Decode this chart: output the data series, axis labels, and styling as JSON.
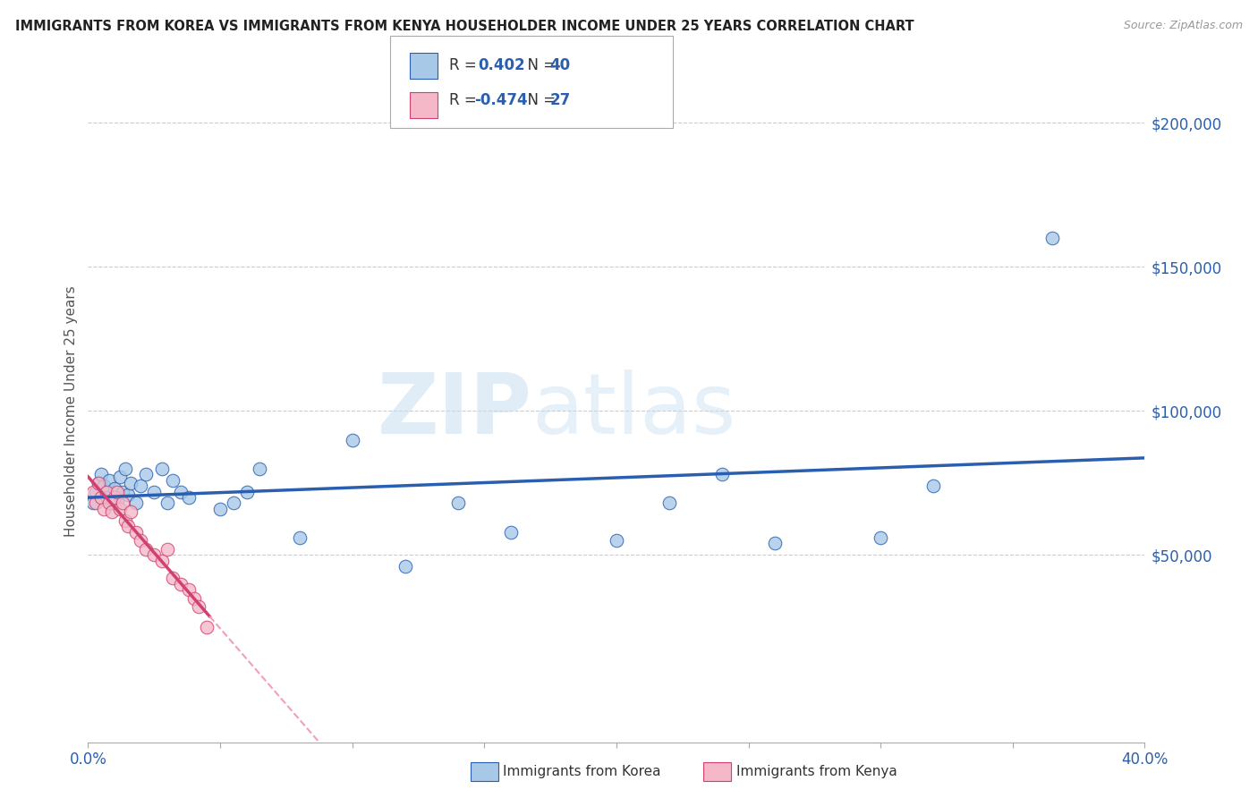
{
  "title": "IMMIGRANTS FROM KOREA VS IMMIGRANTS FROM KENYA HOUSEHOLDER INCOME UNDER 25 YEARS CORRELATION CHART",
  "source": "Source: ZipAtlas.com",
  "ylabel": "Householder Income Under 25 years",
  "xlim": [
    0.0,
    0.4
  ],
  "ylim": [
    -15000,
    215000
  ],
  "xticks": [
    0.0,
    0.05,
    0.1,
    0.15,
    0.2,
    0.25,
    0.3,
    0.35,
    0.4
  ],
  "yticks_right": [
    50000,
    100000,
    150000,
    200000
  ],
  "ytick_labels_right": [
    "$50,000",
    "$100,000",
    "$150,000",
    "$200,000"
  ],
  "korea_R": 0.402,
  "korea_N": 40,
  "kenya_R": -0.474,
  "kenya_N": 27,
  "korea_color": "#a8c8e8",
  "kenya_color": "#f4b8c8",
  "korea_line_color": "#2a5faf",
  "kenya_line_color_solid": "#d04070",
  "kenya_line_color_dashed": "#f0a0b8",
  "watermark_zip": "ZIP",
  "watermark_atlas": "atlas",
  "legend_korea": "Immigrants from Korea",
  "legend_kenya": "Immigrants from Kenya",
  "korea_x": [
    0.002,
    0.003,
    0.004,
    0.005,
    0.006,
    0.007,
    0.008,
    0.009,
    0.01,
    0.011,
    0.012,
    0.013,
    0.014,
    0.015,
    0.016,
    0.018,
    0.02,
    0.022,
    0.025,
    0.028,
    0.03,
    0.032,
    0.035,
    0.038,
    0.05,
    0.055,
    0.06,
    0.065,
    0.08,
    0.1,
    0.12,
    0.14,
    0.16,
    0.2,
    0.22,
    0.24,
    0.26,
    0.3,
    0.32,
    0.365
  ],
  "korea_y": [
    68000,
    72000,
    75000,
    78000,
    74000,
    70000,
    76000,
    68000,
    73000,
    69000,
    77000,
    72000,
    80000,
    71000,
    75000,
    68000,
    74000,
    78000,
    72000,
    80000,
    68000,
    76000,
    72000,
    70000,
    66000,
    68000,
    72000,
    80000,
    56000,
    90000,
    46000,
    68000,
    58000,
    55000,
    68000,
    78000,
    54000,
    56000,
    74000,
    160000
  ],
  "kenya_x": [
    0.002,
    0.003,
    0.004,
    0.005,
    0.006,
    0.007,
    0.008,
    0.009,
    0.01,
    0.011,
    0.012,
    0.013,
    0.014,
    0.015,
    0.016,
    0.018,
    0.02,
    0.022,
    0.025,
    0.028,
    0.03,
    0.032,
    0.035,
    0.038,
    0.04,
    0.042,
    0.045
  ],
  "kenya_y": [
    72000,
    68000,
    75000,
    70000,
    66000,
    72000,
    68000,
    65000,
    70000,
    72000,
    66000,
    68000,
    62000,
    60000,
    65000,
    58000,
    55000,
    52000,
    50000,
    48000,
    52000,
    42000,
    40000,
    38000,
    35000,
    32000,
    25000
  ]
}
